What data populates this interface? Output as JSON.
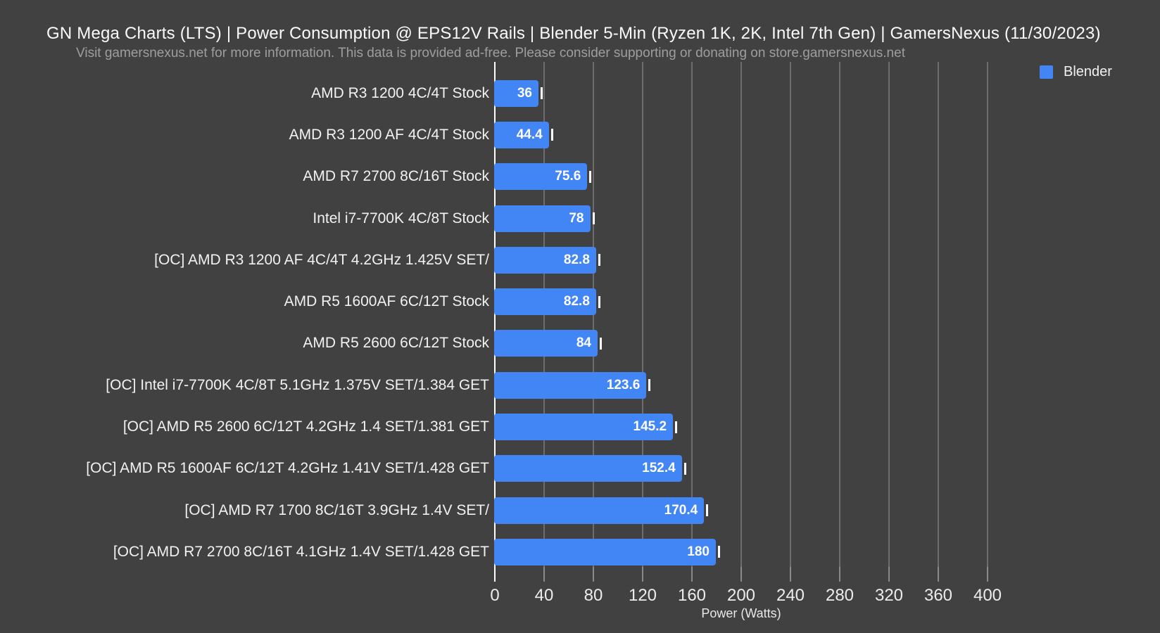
{
  "header": {
    "title": "GN Mega Charts (LTS) | Power Consumption @ EPS12V Rails | Blender 5-Min (Ryzen 1K, 2K, Intel 7th Gen) | GamersNexus (11/30/2023)",
    "subtitle": "Visit gamersnexus.net for more information. This data is provided ad-free. Please consider supporting or donating on store.gamersnexus.net"
  },
  "legend": {
    "label": "Blender",
    "color": "#4285f4",
    "position": "top-right"
  },
  "colors": {
    "background": "#414141",
    "bar": "#4285f4",
    "gridline": "#6d6d6d",
    "zero_axis": "#ffffff",
    "title_text": "#fafafa",
    "subtitle_text": "#9e9e9e",
    "label_text": "#f2f2f2",
    "value_text": "#ffffff"
  },
  "chart_data": {
    "type": "bar",
    "orientation": "horizontal",
    "title": "GN Mega Charts (LTS) | Power Consumption @ EPS12V Rails | Blender 5-Min (Ryzen 1K, 2K, Intel 7th Gen) | GamersNexus (11/30/2023)",
    "subtitle": "Visit gamersnexus.net for more information. This data is provided ad-free. Please consider supporting or donating on store.gamersnexus.net",
    "xlabel": "Power (Watts)",
    "ylabel": "",
    "xlim": [
      0,
      400
    ],
    "xticks": [
      0,
      40,
      80,
      120,
      160,
      200,
      240,
      280,
      320,
      360,
      400
    ],
    "grid": true,
    "legend_position": "top-right",
    "series_name": "Blender",
    "categories": [
      "AMD R3 1200 4C/4T Stock",
      "AMD R3 1200 AF 4C/4T Stock",
      "AMD R7 2700 8C/16T Stock",
      "Intel i7-7700K 4C/8T Stock",
      "[OC] AMD R3 1200 AF 4C/4T 4.2GHz 1.425V SET/",
      "AMD R5 1600AF 6C/12T Stock",
      "AMD R5 2600 6C/12T Stock",
      "[OC] Intel i7-7700K 4C/8T 5.1GHz 1.375V SET/1.384 GET",
      "[OC] AMD R5 2600 6C/12T 4.2GHz 1.4 SET/1.381 GET",
      "[OC] AMD R5 1600AF 6C/12T 4.2GHz 1.41V SET/1.428 GET",
      "[OC] AMD R7 1700 8C/16T 3.9GHz 1.4V SET/",
      "[OC] AMD R7 2700 8C/16T 4.1GHz 1.4V SET/1.428 GET"
    ],
    "values": [
      36,
      44.4,
      75.6,
      78,
      82.8,
      82.8,
      84,
      123.6,
      145.2,
      152.4,
      170.4,
      180
    ]
  }
}
